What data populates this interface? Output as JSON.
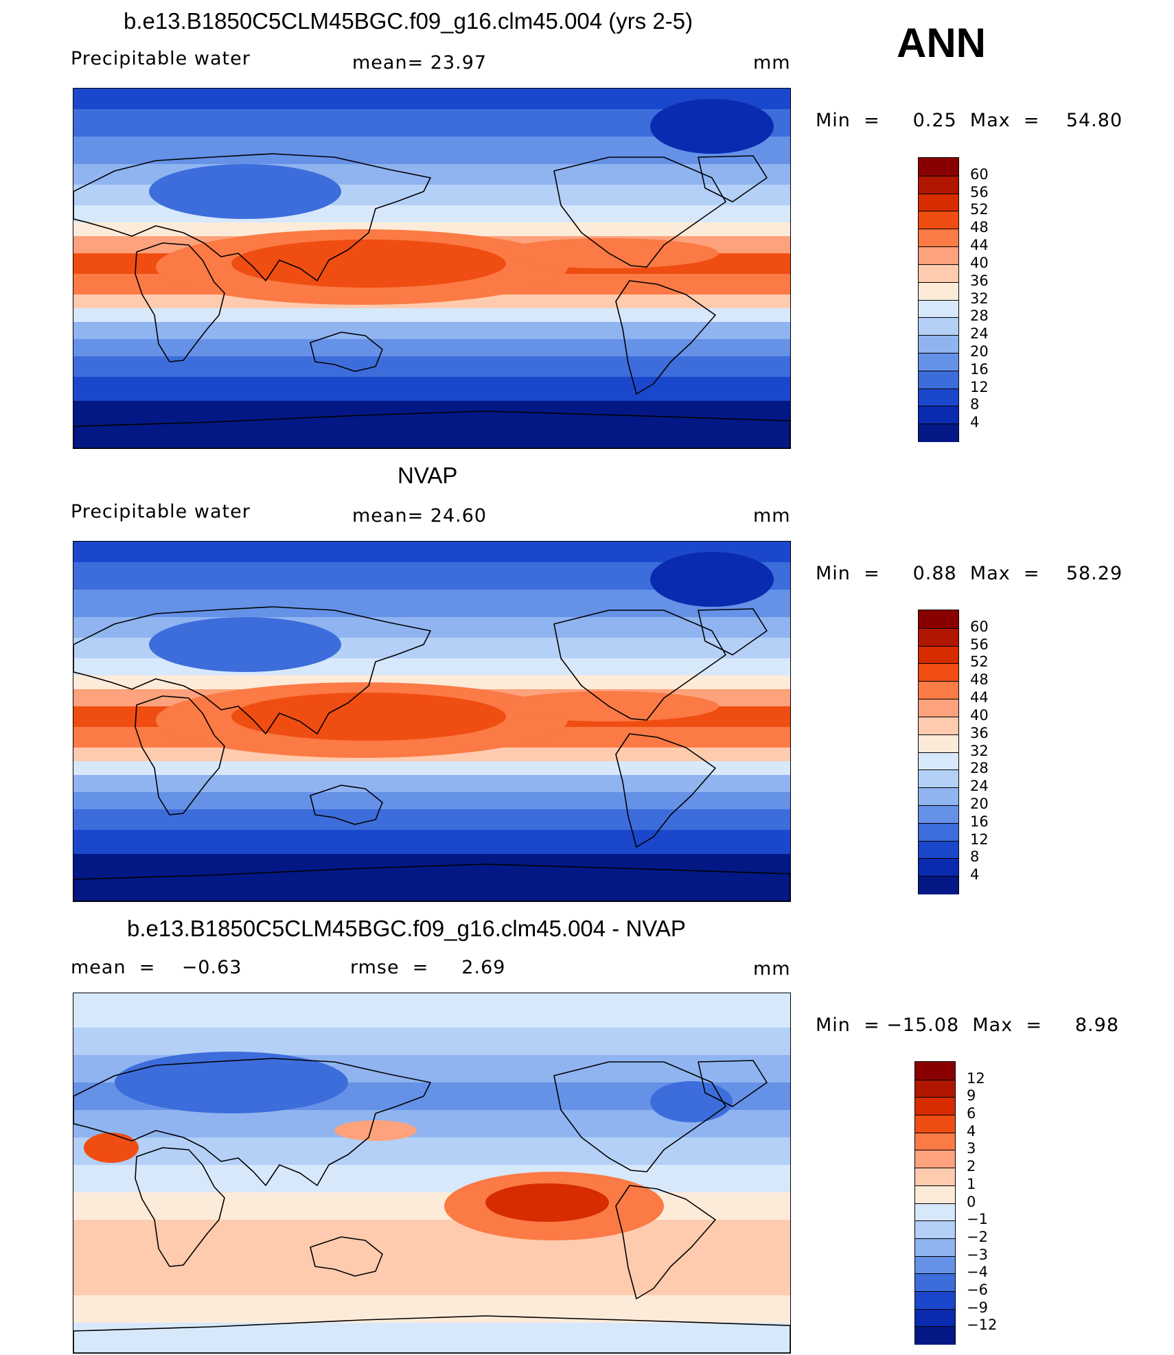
{
  "season": "ANN",
  "panels": [
    {
      "id": "model",
      "title": "b.e13.B1850C5CLM45BGC.f09_g16.clm45.004 (yrs 2-5)",
      "variable": "Precipitable  water",
      "stat": "mean=   23.97",
      "units": "mm",
      "minmax": "Min  =     0.25  Max  =    54.80",
      "levels": [
        "60",
        "56",
        "52",
        "48",
        "44",
        "40",
        "36",
        "32",
        "28",
        "24",
        "20",
        "16",
        "12",
        "8",
        "4"
      ],
      "colors": [
        "#8a0000",
        "#b01600",
        "#d62c00",
        "#f04d12",
        "#fb7a45",
        "#fda27c",
        "#fecbae",
        "#fdebd9",
        "#d8e8fb",
        "#b4d0f7",
        "#8fb4f0",
        "#6591e7",
        "#3d6ddb",
        "#1b47cc",
        "#0a2bb0",
        "#031885"
      ],
      "field": "precip"
    },
    {
      "id": "obs",
      "title": "NVAP",
      "variable": "Precipitable  water",
      "stat": "mean=   24.60",
      "units": "mm",
      "minmax": "Min  =     0.88  Max  =    58.29",
      "levels": [
        "60",
        "56",
        "52",
        "48",
        "44",
        "40",
        "36",
        "32",
        "28",
        "24",
        "20",
        "16",
        "12",
        "8",
        "4"
      ],
      "colors": [
        "#8a0000",
        "#b01600",
        "#d62c00",
        "#f04d12",
        "#fb7a45",
        "#fda27c",
        "#fecbae",
        "#fdebd9",
        "#d8e8fb",
        "#b4d0f7",
        "#8fb4f0",
        "#6591e7",
        "#3d6ddb",
        "#1b47cc",
        "#0a2bb0",
        "#031885"
      ],
      "field": "precip"
    },
    {
      "id": "diff",
      "title": "b.e13.B1850C5CLM45BGC.f09_g16.clm45.004 - NVAP",
      "variable": "mean  =    −0.63",
      "stat": "rmse  =     2.69",
      "units": "mm",
      "minmax": "Min  = −15.08  Max  =     8.98",
      "levels": [
        "12",
        "9",
        "6",
        "4",
        "3",
        "2",
        "1",
        "0",
        "−1",
        "−2",
        "−3",
        "−4",
        "−6",
        "−9",
        "−12"
      ],
      "colors": [
        "#8a0000",
        "#b01600",
        "#d62c00",
        "#f04d12",
        "#fb7a45",
        "#fda27c",
        "#fecbae",
        "#fdebd9",
        "#d8e8fb",
        "#b4d0f7",
        "#8fb4f0",
        "#6591e7",
        "#3d6ddb",
        "#1b47cc",
        "#0a2bb0",
        "#031885"
      ],
      "field": "diff"
    }
  ]
}
